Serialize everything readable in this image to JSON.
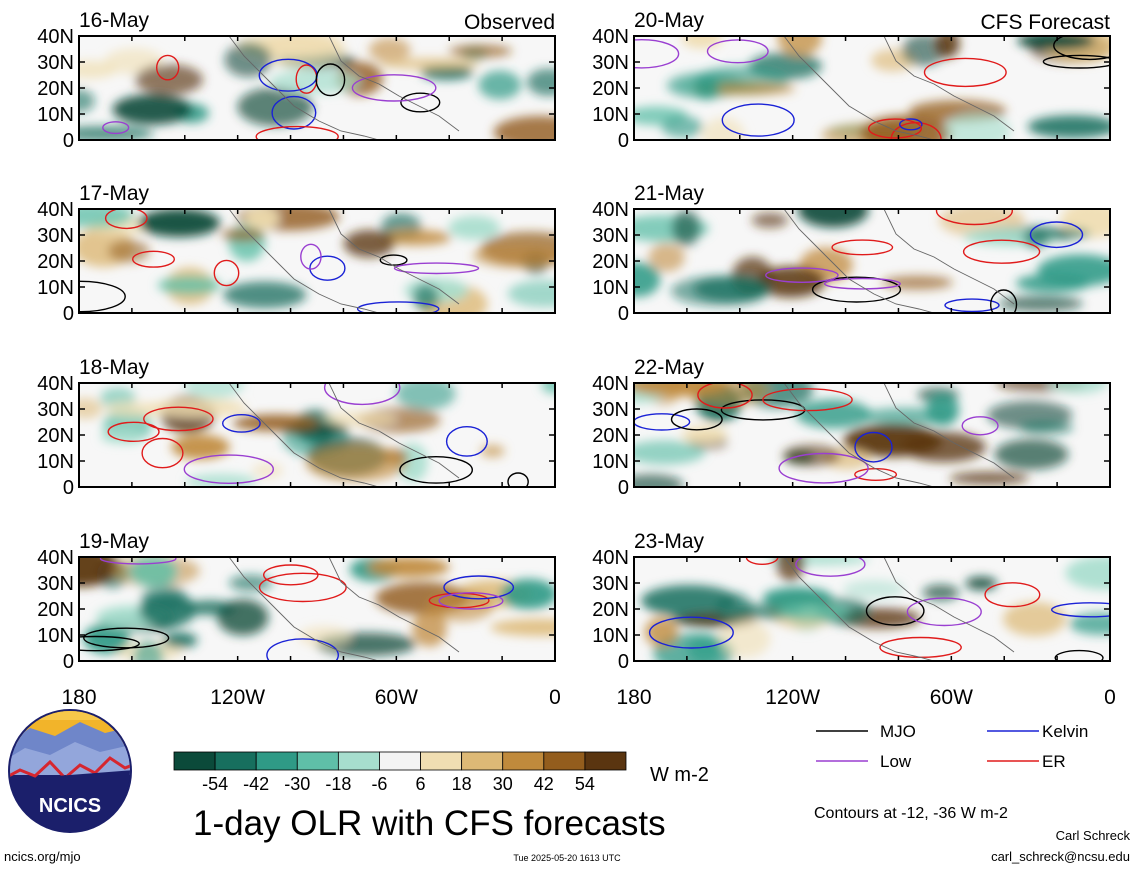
{
  "chart_data": {
    "type": "heatmap",
    "title": "1-day OLR with CFS forecasts",
    "columns": [
      {
        "header": "Observed",
        "dates": [
          "16-May",
          "17-May",
          "18-May",
          "19-May"
        ]
      },
      {
        "header": "CFS Forecast",
        "dates": [
          "20-May",
          "21-May",
          "22-May",
          "23-May"
        ]
      }
    ],
    "y_ticks": [
      "40N",
      "30N",
      "20N",
      "10N",
      "0"
    ],
    "x_ticks": [
      "180",
      "120W",
      "60W",
      "0"
    ],
    "colorbar": {
      "ticks": [
        "-54",
        "-42",
        "-30",
        "-18",
        "-6",
        "6",
        "18",
        "30",
        "42",
        "54"
      ],
      "unit": "W m-2",
      "colors": [
        "#0b4a3a",
        "#176f5e",
        "#2f9a86",
        "#5fbfa8",
        "#a7dece",
        "#f4f4f4",
        "#f0deb2",
        "#ddb976",
        "#c08a3c",
        "#935d1d",
        "#5a3510"
      ]
    },
    "legend": [
      {
        "label": "MJO",
        "color": "#000000"
      },
      {
        "label": "Kelvin",
        "color": "#1a22d6"
      },
      {
        "label": "Low",
        "color": "#9a3fd1"
      },
      {
        "label": "ER",
        "color": "#e01b1b"
      }
    ],
    "contour_note": "Contours at -12, -36 W m-2",
    "grid": false
  },
  "footer": {
    "logo_text": "NCICS",
    "url": "ncics.org/mjo",
    "timestamp": "Tue 2025-05-20 1613 UTC",
    "author": "Carl Schreck",
    "email": "carl_schreck@ncsu.edu"
  }
}
